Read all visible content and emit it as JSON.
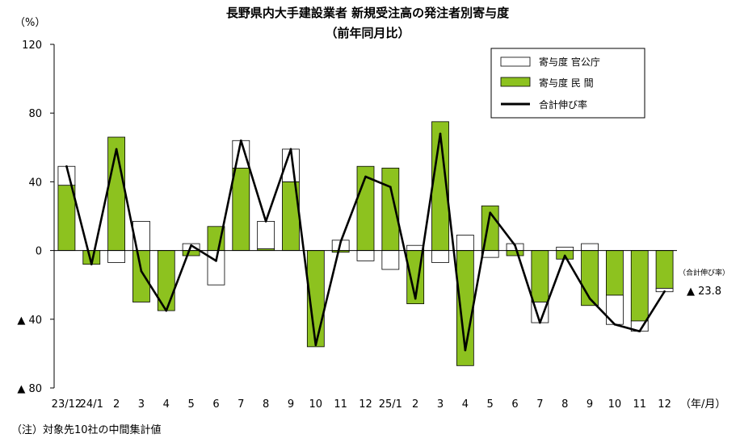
{
  "chart_data": {
    "type": "bar",
    "title": "長野県内大手建設業者 新規受注高の発注者別寄与度",
    "subtitle": "（前年同月比）",
    "ylabel": "（%）",
    "xlabel": "（年/月）",
    "ylim": [
      -80,
      120
    ],
    "y_ticks": [
      120,
      80,
      40,
      0,
      -40,
      -80
    ],
    "y_tick_labels": [
      "120",
      "80",
      "40",
      "0",
      "▲ 40",
      "▲ 80"
    ],
    "categories": [
      "23/12",
      "24/1",
      "2",
      "3",
      "4",
      "5",
      "6",
      "7",
      "8",
      "9",
      "10",
      "11",
      "12",
      "25/1",
      "2",
      "3",
      "4",
      "5",
      "6",
      "7",
      "8",
      "9",
      "10",
      "11",
      "12"
    ],
    "stacked": true,
    "series": [
      {
        "name": "寄与度 官公庁",
        "color": "#ffffff",
        "values": [
          11,
          0,
          -7,
          17,
          0,
          4,
          -20,
          16,
          16,
          19,
          0,
          6,
          -6,
          -11,
          3,
          -7,
          9,
          -4,
          4,
          -12,
          2,
          4,
          -17,
          -6,
          -2
        ]
      },
      {
        "name": "寄与度 民 間",
        "color": "#8dc21f",
        "values": [
          38,
          -8,
          66,
          -30,
          -35,
          -3,
          14,
          48,
          1,
          40,
          -56,
          -1,
          49,
          48,
          -31,
          75,
          -67,
          26,
          -3,
          -30,
          -5,
          -32,
          -26,
          -41,
          -22
        ]
      },
      {
        "name": "合計伸び率",
        "type": "line",
        "color": "#000000",
        "values": [
          49,
          -8,
          59,
          -12,
          -35,
          3,
          -6,
          64,
          17,
          59,
          -55,
          5,
          43,
          37,
          -28,
          68,
          -58,
          22,
          3,
          -42,
          -3,
          -28,
          -43,
          -47,
          -23.8
        ]
      }
    ],
    "legend_position": "top-right",
    "annotation": {
      "label": "（合計伸び率）",
      "value": "▲ 23.8"
    },
    "note": "（注）対象先10社の中間集計値",
    "grid": false
  }
}
